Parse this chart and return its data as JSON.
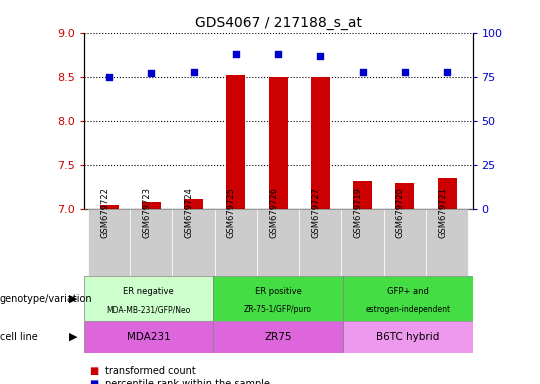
{
  "title": "GDS4067 / 217188_s_at",
  "samples": [
    "GSM679722",
    "GSM679723",
    "GSM679724",
    "GSM679725",
    "GSM679726",
    "GSM679727",
    "GSM679719",
    "GSM679720",
    "GSM679721"
  ],
  "bar_values": [
    7.05,
    7.08,
    7.12,
    8.52,
    8.5,
    8.5,
    7.32,
    7.3,
    7.35
  ],
  "dot_values": [
    75,
    77,
    78,
    88,
    88,
    87,
    78,
    78,
    78
  ],
  "ylim_left": [
    7.0,
    9.0
  ],
  "ylim_right": [
    0,
    100
  ],
  "yticks_left": [
    7.0,
    7.5,
    8.0,
    8.5,
    9.0
  ],
  "yticks_right": [
    0,
    25,
    50,
    75,
    100
  ],
  "bar_color": "#cc0000",
  "dot_color": "#0000cc",
  "bar_baseline": 7.0,
  "groups": [
    {
      "label": "ER negative",
      "sublabel": "MDA-MB-231/GFP/Neo",
      "start": 0,
      "end": 3,
      "color": "#ccffcc"
    },
    {
      "label": "ER positive",
      "sublabel": "ZR-75-1/GFP/puro",
      "start": 3,
      "end": 6,
      "color": "#44dd44"
    },
    {
      "label": "GFP+ and",
      "sublabel": "estrogen-independent",
      "start": 6,
      "end": 9,
      "color": "#44dd44"
    }
  ],
  "cell_lines": [
    {
      "label": "MDA231",
      "start": 0,
      "end": 3,
      "color": "#dd66dd"
    },
    {
      "label": "ZR75",
      "start": 3,
      "end": 6,
      "color": "#dd66dd"
    },
    {
      "label": "B6TC hybrid",
      "start": 6,
      "end": 9,
      "color": "#ee99ee"
    }
  ],
  "sample_box_color": "#cccccc",
  "genotype_label": "genotype/variation",
  "cellline_label": "cell line",
  "legend_bar": "transformed count",
  "legend_dot": "percentile rank within the sample",
  "tick_color_left": "#cc0000",
  "tick_color_right": "#0000cc"
}
